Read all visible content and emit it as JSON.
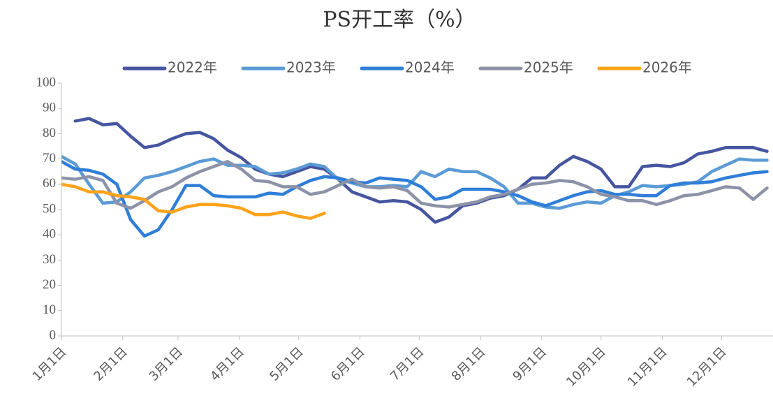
{
  "chart_data": {
    "type": "line",
    "title": "PS开工率（%）",
    "x": [
      0,
      7,
      14,
      21,
      28,
      35,
      42,
      49,
      56,
      63,
      70,
      77,
      84,
      91,
      98,
      105,
      112,
      119,
      126,
      133,
      140,
      147,
      154,
      161,
      168,
      175,
      182,
      189,
      196,
      203,
      210,
      217,
      224,
      231,
      238,
      245,
      252,
      259,
      266,
      273,
      280,
      287,
      294,
      301,
      308,
      315,
      322,
      329,
      336,
      343,
      350,
      357
    ],
    "xlim": [
      0,
      360
    ],
    "xticks": [
      {
        "value": 0,
        "label": "1月1日"
      },
      {
        "value": 31,
        "label": "2月1日"
      },
      {
        "value": 59,
        "label": "3月1日"
      },
      {
        "value": 90,
        "label": "4月1日"
      },
      {
        "value": 120,
        "label": "5月1日"
      },
      {
        "value": 151,
        "label": "6月1日"
      },
      {
        "value": 181,
        "label": "7月1日"
      },
      {
        "value": 212,
        "label": "8月1日"
      },
      {
        "value": 243,
        "label": "9月1日"
      },
      {
        "value": 273,
        "label": "10月1日"
      },
      {
        "value": 304,
        "label": "11月1日"
      },
      {
        "value": 334,
        "label": "12月1日"
      }
    ],
    "ylim": [
      0,
      100
    ],
    "yticks": [
      0,
      10,
      20,
      30,
      40,
      50,
      60,
      70,
      80,
      90,
      100
    ],
    "grid": false,
    "legend": "top",
    "series": [
      {
        "name": "2022年",
        "color": "#4655a0",
        "values": [
          null,
          85,
          86,
          83.5,
          84,
          79,
          74.5,
          75.5,
          78,
          80,
          80.5,
          78,
          73.5,
          70.5,
          66,
          64,
          63,
          65,
          67,
          66,
          62,
          57,
          55,
          53,
          53.5,
          53,
          50,
          45,
          47,
          51.5,
          52.5,
          54.5,
          55.5,
          58,
          62.5,
          62.5,
          67.5,
          71,
          69,
          66,
          59,
          59,
          67,
          67.5,
          67,
          68.5,
          72,
          73,
          74.5,
          74.5,
          74.5,
          73
        ]
      },
      {
        "name": "2023年",
        "color": "#5b9bd5",
        "values": [
          71,
          68,
          60,
          52.5,
          53,
          57,
          62.5,
          63.5,
          65,
          67,
          69,
          70,
          67.5,
          67.5,
          67,
          64,
          64.5,
          66,
          68,
          67,
          62,
          60.5,
          59,
          59,
          59.5,
          59,
          65,
          63,
          66,
          65,
          65,
          62.5,
          59,
          52.5,
          52.5,
          51,
          50.5,
          52,
          53,
          52.5,
          55.5,
          57,
          59.5,
          59,
          59.5,
          60,
          61,
          65,
          67.5,
          70,
          69.5,
          69.5
        ]
      },
      {
        "name": "2024年",
        "color": "#2f7ed8",
        "values": [
          69,
          66,
          65.5,
          64,
          60,
          46,
          39.5,
          42,
          50,
          59.5,
          59.5,
          55.5,
          55,
          55,
          55,
          56.5,
          56,
          59,
          61.5,
          63,
          62.5,
          61,
          60.5,
          62.5,
          62,
          61.5,
          59,
          54,
          55,
          58,
          58,
          58,
          57,
          55.5,
          53,
          51.5,
          53.5,
          55.5,
          57,
          57.5,
          56,
          56,
          55.5,
          55.5,
          59.5,
          60.5,
          60.5,
          61,
          62.5,
          63.5,
          64.5,
          65
        ]
      },
      {
        "name": "2025年",
        "color": "#8c93a8",
        "values": [
          62.5,
          62,
          63,
          61.5,
          52.5,
          50.5,
          53.5,
          57,
          59,
          62.5,
          65,
          67,
          69,
          66,
          61.5,
          61,
          59,
          59,
          56,
          57,
          59.5,
          62,
          59,
          58.5,
          59,
          57.5,
          52.5,
          51.5,
          51,
          52,
          53,
          55,
          56,
          58,
          60,
          60.5,
          61.5,
          61,
          59,
          56,
          55,
          53.5,
          53.5,
          52,
          53.5,
          55.5,
          56,
          57.5,
          59,
          58.5,
          54,
          58.5
        ]
      },
      {
        "name": "2026年",
        "color": "#ffa31a",
        "values": [
          60,
          59,
          57,
          57,
          55.5,
          55,
          54,
          49.5,
          49,
          51,
          52,
          52,
          51.5,
          50.5,
          48,
          48,
          49,
          47.5,
          46.5,
          48.5,
          null,
          null,
          null,
          null,
          null,
          null,
          null,
          null,
          null,
          null,
          null,
          null,
          null,
          null,
          null,
          null,
          null,
          null,
          null,
          null,
          null,
          null,
          null,
          null,
          null,
          null,
          null,
          null,
          null,
          null,
          null,
          null
        ]
      }
    ]
  }
}
